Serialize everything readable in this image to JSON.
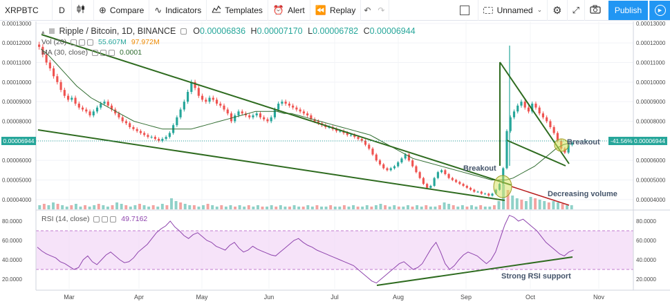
{
  "toolbar": {
    "symbol": "XRPBTC",
    "interval": "D",
    "compare_label": "Compare",
    "indicators_label": "Indicators",
    "templates_label": "Templates",
    "alert_label": "Alert",
    "replay_label": "Replay",
    "layout_name": "Unnamed",
    "publish_label": "Publish"
  },
  "legend": {
    "symbol_title": "Ripple / Bitcoin, 1D, BINANCE",
    "o_label": "O",
    "o_value": "0.00006836",
    "h_label": "H",
    "h_value": "0.00007170",
    "l_label": "L",
    "l_value": "0.00006782",
    "c_label": "C",
    "c_value": "0.00006944",
    "vol_label": "Vol (20)",
    "vol_value1": "55.607M",
    "vol_value2": "97.972M",
    "ma_label": "MA (30, close)",
    "ma_value": "0.0001",
    "rsi_label": "RSI (14, close)",
    "rsi_value": "49.7162"
  },
  "price_tags": {
    "left": "0.00006944",
    "right_pct": "-41.56%",
    "right_price": "0.00006944"
  },
  "annotations": {
    "breakout_1": "Breakout",
    "breakout_2": "Breakout",
    "decreasing_volume": "Decreasing volume",
    "rsi_support": "Strong RSI support"
  },
  "price_axis_labels": [
    "0.00013000",
    "0.00012000",
    "0.00011000",
    "0.00010000",
    "0.00009000",
    "0.00008000",
    "0.00007000",
    "0.00006000",
    "0.00005000",
    "0.00004000"
  ],
  "rsi_axis_labels": [
    "80.0000",
    "60.0000",
    "40.0000",
    "20.0000"
  ],
  "time_labels": [
    "Mar",
    "Apr",
    "May",
    "Jun",
    "Jul",
    "Aug",
    "Sep",
    "Oct",
    "Nov"
  ],
  "colors": {
    "up": "#26a69a",
    "down": "#ef5350",
    "ma": "#2e6b2e",
    "trendline": "#2e6b1f",
    "rsi_line": "#8e44ad",
    "rsi_band": "#f3d9f7",
    "highlight": "#d4e157"
  },
  "chart_data": {
    "type": "candlestick",
    "ylim": [
      3.5e-05,
      0.000131
    ],
    "rsi_ylim": [
      10,
      90
    ],
    "rsi_bands": [
      30,
      70
    ],
    "last_price": 6.944e-05,
    "rsi_last": 49.7162,
    "close_series": [
      0.000118,
      0.000114,
      0.00011,
      0.000107,
      0.000103,
      0.0001,
      9.6e-05,
      9.3e-05,
      9.1e-05,
      9.2e-05,
      8.9e-05,
      8.7e-05,
      8.6e-05,
      8.5e-05,
      8.3e-05,
      8.5e-05,
      8.7e-05,
      8.9e-05,
      9e-05,
      8.8e-05,
      8.6e-05,
      8.4e-05,
      8.2e-05,
      8e-05,
      7.9e-05,
      7.7e-05,
      7.6e-05,
      7.5e-05,
      7.4e-05,
      7.3e-05,
      7.2e-05,
      7.2e-05,
      7.1e-05,
      7e-05,
      7.1e-05,
      7.2e-05,
      7.4e-05,
      7.8e-05,
      8.2e-05,
      8.6e-05,
      9e-05,
      9.5e-05,
      0.0001,
      9.7e-05,
      9.3e-05,
      9.1e-05,
      9e-05,
      9.2e-05,
      9.1e-05,
      8.9e-05,
      8.8e-05,
      8.6e-05,
      8.4e-05,
      8e-05,
      8.3e-05,
      8.5e-05,
      8.4e-05,
      8.3e-05,
      8.2e-05,
      8.3e-05,
      8.4e-05,
      8.2e-05,
      8.1e-05,
      8e-05,
      8.2e-05,
      8.6e-05,
      8.9e-05,
      9e-05,
      8.9e-05,
      8.8e-05,
      8.7e-05,
      8.6e-05,
      8.5e-05,
      8.4e-05,
      8.3e-05,
      8.1e-05,
      8e-05,
      7.9e-05,
      7.8e-05,
      7.7e-05,
      7.7e-05,
      7.6e-05,
      7.5e-05,
      7.5e-05,
      7.4e-05,
      7.3e-05,
      7.3e-05,
      7.2e-05,
      7.1e-05,
      7e-05,
      6.8e-05,
      6.6e-05,
      6.3e-05,
      6e-05,
      5.8e-05,
      5.6e-05,
      5.5e-05,
      5.6e-05,
      5.7e-05,
      5.9e-05,
      6.1e-05,
      6.3e-05,
      6e-05,
      5.7e-05,
      5.4e-05,
      5.1e-05,
      4.8e-05,
      4.6e-05,
      4.7e-05,
      5.1e-05,
      5.4e-05,
      5.5e-05,
      5.3e-05,
      5.1e-05,
      5e-05,
      4.9e-05,
      4.8e-05,
      4.7e-05,
      4.6e-05,
      4.5e-05,
      4.4e-05,
      4.4e-05,
      4.3e-05,
      4.3e-05,
      4.2e-05,
      4.3e-05,
      4.5e-05,
      4.8e-05,
      5.6e-05,
      7.5e-05,
      8.2e-05,
      8.5e-05,
      8.8e-05,
      9e-05,
      8.7e-05,
      8.5e-05,
      8.9e-05,
      8.7e-05,
      8.4e-05,
      8.2e-05,
      8e-05,
      7.7e-05,
      7.4e-05,
      7e-05,
      6.6e-05,
      6.4e-05,
      6.8e-05,
      6.9e-05
    ],
    "ma_series": [
      0.000117,
      0.000114,
      0.00011,
      0.000106,
      0.000102,
      9.8e-05,
      9.5e-05,
      9.2e-05,
      9e-05,
      8.8e-05,
      8.6e-05,
      8.4e-05,
      8.2e-05,
      8e-05,
      7.9e-05,
      7.8e-05,
      7.7e-05,
      7.6e-05,
      7.6e-05,
      7.6e-05,
      7.6e-05,
      7.6e-05,
      7.7e-05,
      7.8e-05,
      7.9e-05,
      8e-05,
      8.1e-05,
      8.2e-05,
      8.3e-05,
      8.4e-05,
      8.5e-05,
      8.5e-05,
      8.5e-05,
      8.5e-05,
      8.4e-05,
      8.4e-05,
      8.3e-05,
      8.2e-05,
      8.1e-05,
      8e-05,
      7.9e-05,
      7.8e-05,
      7.7e-05,
      7.6e-05,
      7.5e-05,
      7.4e-05,
      7.3e-05,
      7.1e-05,
      6.9e-05,
      6.7e-05,
      6.5e-05,
      6.3e-05,
      6.1e-05,
      6e-05,
      5.9e-05,
      5.8e-05,
      5.7e-05,
      5.6e-05,
      5.5e-05,
      5.4e-05,
      5.3e-05,
      5.2e-05,
      5.1e-05,
      5e-05,
      5e-05,
      5e-05,
      5.1e-05,
      5.3e-05,
      5.5e-05,
      5.7e-05,
      6e-05,
      6.3e-05,
      6.6e-05,
      6.8e-05,
      6.9e-05
    ],
    "rsi_series": [
      53,
      49,
      46,
      44,
      42,
      38,
      36,
      33,
      30,
      32,
      40,
      44,
      38,
      35,
      40,
      45,
      48,
      44,
      40,
      37,
      38,
      42,
      48,
      52,
      56,
      62,
      68,
      72,
      75,
      80,
      74,
      70,
      65,
      62,
      66,
      68,
      64,
      60,
      58,
      54,
      52,
      50,
      55,
      58,
      52,
      48,
      50,
      54,
      51,
      49,
      47,
      45,
      44,
      48,
      52,
      56,
      60,
      62,
      58,
      55,
      53,
      50,
      48,
      46,
      44,
      42,
      40,
      38,
      36,
      34,
      30,
      26,
      22,
      18,
      16,
      20,
      24,
      28,
      32,
      36,
      38,
      34,
      30,
      32,
      36,
      44,
      52,
      58,
      48,
      36,
      30,
      34,
      40,
      45,
      48,
      46,
      44,
      40,
      36,
      40,
      48,
      62,
      76,
      86,
      84,
      80,
      82,
      78,
      74,
      70,
      64,
      58,
      54,
      50,
      46,
      44,
      48,
      50
    ],
    "volume_series": [
      3,
      4,
      3,
      5,
      4,
      3,
      2,
      3,
      4,
      2,
      3,
      2,
      3,
      4,
      3,
      2,
      3,
      5,
      4,
      3,
      2,
      3,
      4,
      3,
      2,
      3,
      2,
      4,
      3,
      8,
      6,
      5,
      4,
      3,
      3,
      2,
      3,
      4,
      3,
      2,
      3,
      2,
      3,
      2,
      3,
      2,
      3,
      2,
      3,
      2,
      2,
      3,
      2,
      3,
      2,
      2,
      3,
      2,
      2,
      3,
      2,
      3,
      2,
      2,
      3,
      2,
      2,
      3,
      2,
      3,
      2,
      2,
      3,
      2,
      3,
      4,
      3,
      2,
      3,
      2,
      2,
      3,
      2,
      3,
      2,
      3,
      2,
      2,
      3,
      5,
      4,
      3,
      2,
      3,
      2,
      3,
      2,
      3,
      2,
      2,
      3,
      6,
      18,
      14,
      10,
      8,
      7,
      6,
      9,
      8,
      7,
      6,
      5,
      6,
      5,
      4,
      3,
      3
    ]
  }
}
